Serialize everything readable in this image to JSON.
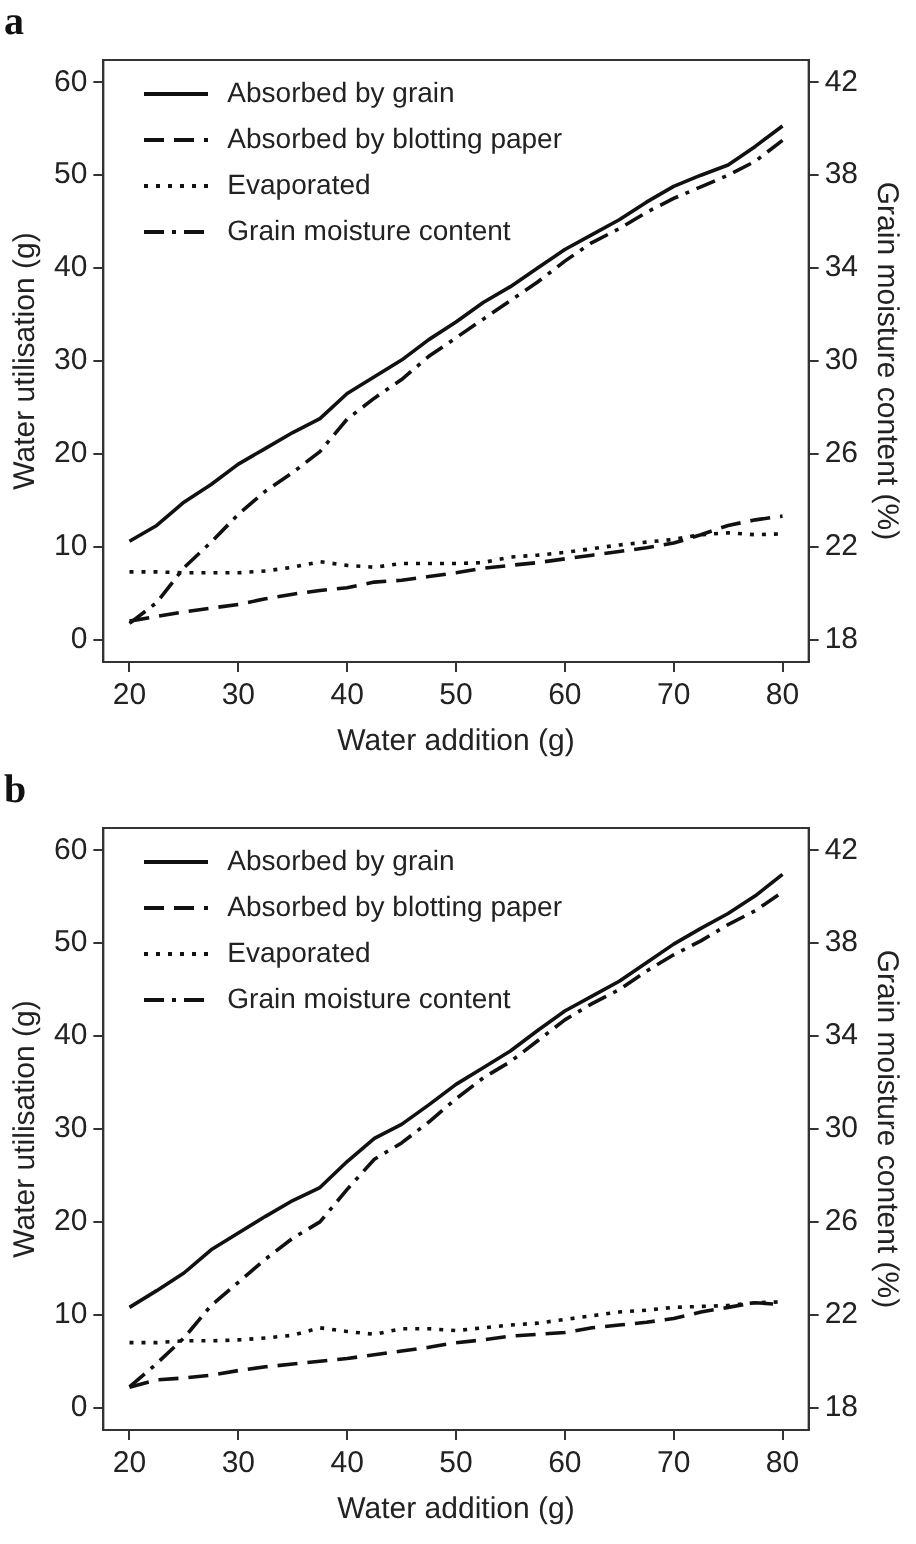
{
  "chart_data": [
    {
      "type": "line",
      "title": "a",
      "xlabel": "Water addition (g)",
      "ylabel": "Water utilisation (g)",
      "y2label": "Grain moisture content (%)",
      "x": [
        20,
        22.5,
        25,
        27.5,
        30,
        32.5,
        35,
        37.5,
        40,
        42.5,
        45,
        47.5,
        50,
        52.5,
        55,
        57.5,
        60,
        62.5,
        65,
        67.5,
        70,
        72.5,
        75,
        77.5,
        80
      ],
      "xlim": [
        17.6,
        82.4
      ],
      "xticks": [
        20,
        30,
        40,
        50,
        60,
        70,
        80
      ],
      "ylim": [
        -2.4,
        62.4
      ],
      "yticks": [
        0,
        10,
        20,
        30,
        40,
        50,
        60
      ],
      "y2lim": [
        17.04,
        42.96
      ],
      "y2ticks": [
        18,
        22,
        26,
        30,
        34,
        38,
        42
      ],
      "grid": false,
      "legend": "top left",
      "marker": "none",
      "series": [
        {
          "name": "Absorbed by grain",
          "color": "#111111",
          "line_style": "solid",
          "values": [
            10.6,
            12.3,
            14.8,
            16.7,
            18.9,
            20.6,
            22.3,
            23.8,
            26.5,
            28.3,
            30.1,
            32.3,
            34.2,
            36.3,
            38,
            40,
            42,
            43.6,
            45.2,
            47.1,
            48.8,
            50,
            51.1,
            53.1,
            55.3
          ]
        },
        {
          "name": "Absorbed by blotting paper",
          "color": "#111111",
          "line_style": "dashed",
          "values": [
            2.0,
            2.5,
            3.0,
            3.4,
            3.8,
            4.4,
            4.9,
            5.3,
            5.6,
            6.2,
            6.4,
            6.8,
            7.2,
            7.7,
            8.0,
            8.3,
            8.7,
            9.1,
            9.5,
            9.9,
            10.4,
            11.3,
            12.3,
            12.9,
            13.3
          ]
        },
        {
          "name": "Evaporated",
          "color": "#111111",
          "line_style": "dotted",
          "values": [
            7.3,
            7.3,
            7.2,
            7.2,
            7.2,
            7.4,
            7.8,
            8.4,
            8.0,
            7.8,
            8.2,
            8.2,
            8.2,
            8.3,
            8.9,
            9.1,
            9.4,
            9.8,
            10.2,
            10.5,
            10.8,
            11.3,
            11.5,
            11.3,
            11.4
          ]
        },
        {
          "name": "Grain moisture content",
          "color": "#111111",
          "line_style": "dashdot",
          "axis": "y2",
          "values": [
            18.7,
            19.6,
            21.1,
            22.2,
            23.4,
            24.4,
            25.2,
            26.1,
            27.5,
            28.4,
            29.2,
            30.2,
            31.0,
            31.8,
            32.6,
            33.4,
            34.3,
            35.1,
            35.7,
            36.4,
            37.0,
            37.5,
            38.0,
            38.6,
            39.5
          ]
        }
      ]
    },
    {
      "type": "line",
      "title": "b",
      "xlabel": "Water addition (g)",
      "ylabel": "Water utilisation (g)",
      "y2label": "Grain moisture content (%)",
      "x": [
        20,
        22.5,
        25,
        27.5,
        30,
        32.5,
        35,
        37.5,
        40,
        42.5,
        45,
        47.5,
        50,
        52.5,
        55,
        57.5,
        60,
        62.5,
        65,
        67.5,
        70,
        72.5,
        75,
        77.5,
        80
      ],
      "xlim": [
        17.6,
        82.4
      ],
      "xticks": [
        20,
        30,
        40,
        50,
        60,
        70,
        80
      ],
      "ylim": [
        -2.4,
        62.4
      ],
      "yticks": [
        0,
        10,
        20,
        30,
        40,
        50,
        60
      ],
      "y2lim": [
        17.04,
        42.96
      ],
      "y2ticks": [
        18,
        22,
        26,
        30,
        34,
        38,
        42
      ],
      "grid": false,
      "legend": "top left",
      "marker": "none",
      "series": [
        {
          "name": "Absorbed by grain",
          "color": "#111111",
          "line_style": "solid",
          "values": [
            10.8,
            12.6,
            14.5,
            17.0,
            18.8,
            20.6,
            22.3,
            23.7,
            26.5,
            29.0,
            30.5,
            32.6,
            34.8,
            36.6,
            38.4,
            40.6,
            42.7,
            44.3,
            45.9,
            47.9,
            49.9,
            51.6,
            53.2,
            55.1,
            57.4
          ]
        },
        {
          "name": "Absorbed by blotting paper",
          "color": "#111111",
          "line_style": "dashed",
          "values": [
            2.2,
            3.0,
            3.2,
            3.5,
            4.0,
            4.4,
            4.7,
            5.0,
            5.3,
            5.7,
            6.1,
            6.5,
            7.0,
            7.3,
            7.7,
            7.9,
            8.1,
            8.6,
            8.9,
            9.2,
            9.6,
            10.3,
            10.8,
            11.3,
            11.1
          ]
        },
        {
          "name": "Evaporated",
          "color": "#111111",
          "line_style": "dotted",
          "values": [
            7.0,
            7.0,
            7.2,
            7.2,
            7.3,
            7.5,
            7.8,
            8.6,
            8.2,
            7.9,
            8.5,
            8.5,
            8.3,
            8.6,
            8.9,
            9.1,
            9.5,
            9.9,
            10.3,
            10.5,
            10.8,
            10.9,
            11.0,
            11.3,
            11.4
          ]
        },
        {
          "name": "Grain moisture content",
          "color": "#111111",
          "line_style": "dashdot",
          "axis": "y2",
          "values": [
            18.9,
            19.9,
            21.0,
            22.4,
            23.4,
            24.4,
            25.3,
            26.0,
            27.4,
            28.7,
            29.4,
            30.3,
            31.3,
            32.2,
            32.9,
            33.8,
            34.7,
            35.4,
            36.0,
            36.8,
            37.5,
            38.1,
            38.8,
            39.4,
            40.2
          ]
        }
      ]
    }
  ]
}
